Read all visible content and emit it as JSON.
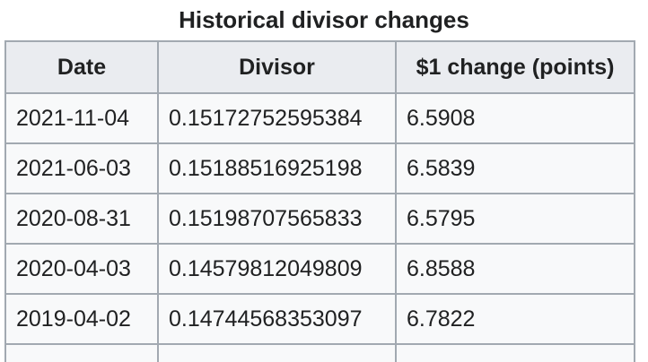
{
  "table": {
    "caption": "Historical divisor changes",
    "headers": [
      "Date",
      "Divisor",
      "$1 change (points)"
    ],
    "rows": [
      {
        "date": "2021-11-04",
        "divisor": "0.15172752595384",
        "change": "6.5908"
      },
      {
        "date": "2021-06-03",
        "divisor": "0.15188516925198",
        "change": "6.5839"
      },
      {
        "date": "2020-08-31",
        "divisor": "0.15198707565833",
        "change": "6.5795"
      },
      {
        "date": "2020-04-03",
        "divisor": "0.14579812049809",
        "change": "6.8588"
      },
      {
        "date": "2019-04-02",
        "divisor": "0.14744568353097",
        "change": "6.7822"
      }
    ]
  }
}
